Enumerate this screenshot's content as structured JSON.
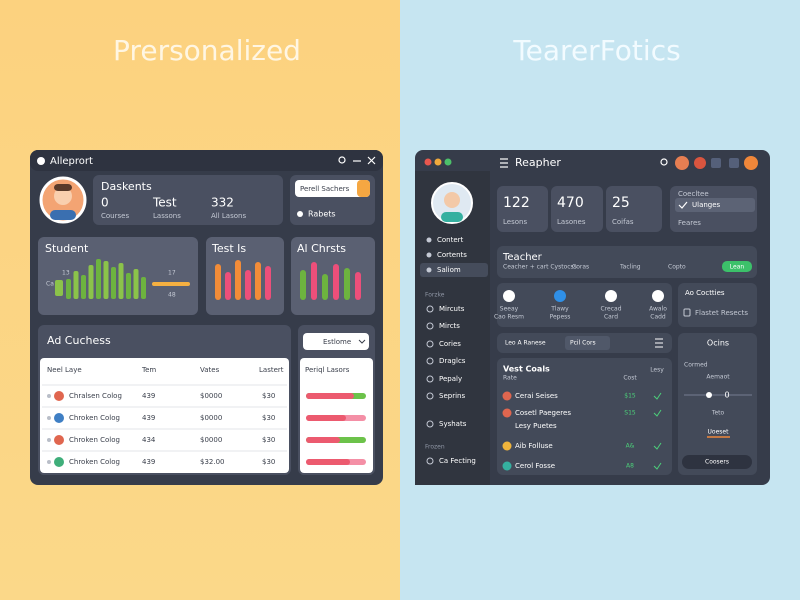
{
  "headline_left": "Prersonalized",
  "headline_right": "TearerFotics",
  "left_app": {
    "title": "Alleprort",
    "profile": {
      "heading": "Daskents",
      "stats": [
        [
          "0",
          "Courses"
        ],
        [
          "Test",
          "Lassons"
        ],
        [
          "332",
          "All Lasons"
        ]
      ],
      "button": "Perell Sachers",
      "link": "Rabets"
    },
    "cards": [
      "Student",
      "Test Is",
      "Al Chrsts"
    ],
    "card_labels": [
      "13",
      "Ca",
      "17",
      "48"
    ],
    "table": {
      "title": "Ad Cuchess",
      "columns": [
        "Neel Laye",
        "Tem",
        "Vates",
        "Lastert"
      ],
      "rows": [
        [
          "Chralsen Colog",
          "439",
          "$0000",
          "$30"
        ],
        [
          "Chroken Colog",
          "439",
          "$0000",
          "$30"
        ],
        [
          "Chroken Colog",
          "434",
          "$0000",
          "$30"
        ],
        [
          "Chroken Colog",
          "439",
          "$32.00",
          "$30"
        ]
      ]
    },
    "side_panel": {
      "dropdown": "Estlome",
      "title": "Periql Lasors"
    }
  },
  "right_app": {
    "title": "Reapher",
    "nav": [
      "Contert",
      "Cortents",
      "Saliom"
    ],
    "section": "Forzke",
    "menu": [
      "Mircuts",
      "Mircts",
      "Cories",
      "Draglcs",
      "Pepaly",
      "Seprins",
      "Syshats"
    ],
    "footer_label": "Frozen",
    "footer_item": "Ca Fecting",
    "stats": [
      [
        "122",
        "Lesons"
      ],
      [
        "470",
        "Lasones"
      ],
      [
        "25",
        "Coifas"
      ]
    ],
    "course_box": {
      "title": "Coecltee",
      "button": "Ulanges",
      "link": "Feares"
    },
    "teacher_bar": {
      "title": "Teacher",
      "items": [
        "Ceacher + cart Cystocss",
        "Coras",
        "Tacling",
        "Copto"
      ],
      "badge": "Lean"
    },
    "shortcuts": [
      [
        "Seeay",
        "Cao Resm"
      ],
      [
        "Tlawy",
        "Pepess"
      ],
      [
        "Crecad",
        "Card"
      ],
      [
        "Awalo",
        "Cadd"
      ]
    ],
    "activity": {
      "title": "Ao Coctties",
      "item": "Flastet Resects"
    },
    "tabs": [
      "Leo A Ranese",
      "Pcil Cors"
    ],
    "list": {
      "title": "Vest Coals",
      "subtitle": "Rate",
      "columns": [
        "Cost",
        "Lesy"
      ],
      "rows": [
        {
          "name": "Cerai Seises",
          "value": "$15"
        },
        {
          "name": "Cosetl Paegeres",
          "value": "S15"
        },
        {
          "name": "Lesy Puetes"
        },
        {
          "name": "Aib Folluse",
          "value": "A&"
        },
        {
          "name": "Cerol Fosse",
          "value": "A8"
        }
      ]
    },
    "options": {
      "title": "Ocins",
      "items": [
        "Cormed",
        "Aemaot"
      ],
      "count": "0",
      "label": "Teto",
      "link": "Uoeset",
      "button": "Coosers"
    }
  }
}
